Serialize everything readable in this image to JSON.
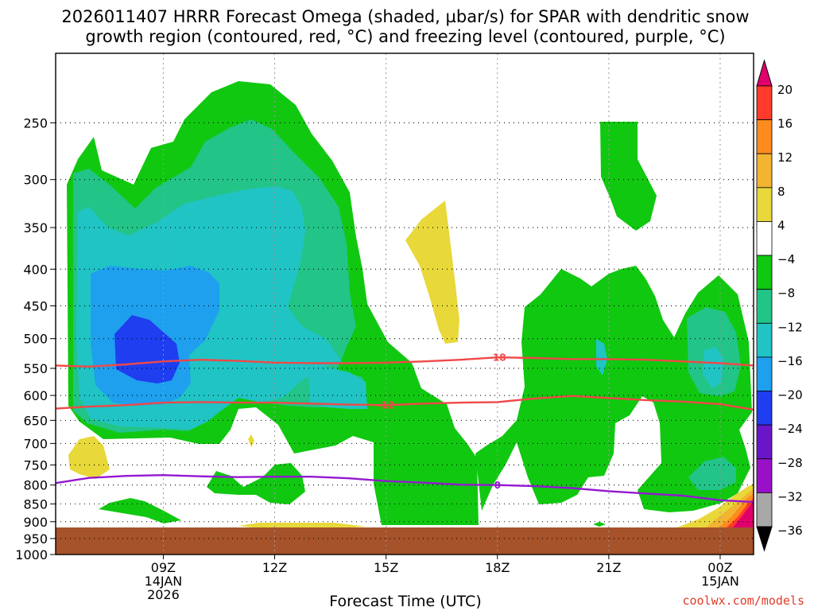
{
  "chart_data": {
    "type": "heatmap",
    "title_lines": [
      "2026011407 HRRR Forecast Omega (shaded, µbar/s) for SPAR with dendritic snow",
      "growth region (contoured, red, °C) and freezing level (contoured, purple, °C)"
    ],
    "xlabel": "Forecast Time (UTC)",
    "ylabel": "",
    "x_ticks": [
      {
        "hour": 9,
        "lines": [
          "09Z",
          "14JAN",
          "2026"
        ]
      },
      {
        "hour": 12,
        "lines": [
          "12Z"
        ]
      },
      {
        "hour": 15,
        "lines": [
          "15Z"
        ]
      },
      {
        "hour": 18,
        "lines": [
          "18Z"
        ]
      },
      {
        "hour": 21,
        "lines": [
          "21Z"
        ]
      },
      {
        "hour": 24,
        "lines": [
          "00Z",
          "15JAN"
        ]
      }
    ],
    "xlim": [
      6.1,
      24.9
    ],
    "y_axis": "pressure (log)",
    "y_ticks": [
      250,
      300,
      350,
      400,
      450,
      500,
      550,
      600,
      650,
      700,
      750,
      800,
      850,
      900,
      950,
      1000
    ],
    "ylim": [
      200,
      1000
    ],
    "colorbar": {
      "labels": [
        "20",
        "16",
        "12",
        "8",
        "4",
        "−4",
        "−8",
        "−12",
        "−16",
        "−20",
        "−24",
        "−28",
        "−32",
        "−36"
      ],
      "colors": [
        "#e0006c",
        "#ff3a2a",
        "#ff8a1e",
        "#f2b431",
        "#e8d83a",
        "#ffffff",
        "#10c810",
        "#22c488",
        "#20c4c4",
        "#1ea0ee",
        "#1e3ef0",
        "#6a16c8",
        "#9a10c8",
        "#a8a8a8",
        "#000000"
      ]
    },
    "contours": [
      {
        "label": "-18",
        "color": "#f04848",
        "points": [
          [
            6.1,
            545
          ],
          [
            7,
            547
          ],
          [
            8,
            543
          ],
          [
            9,
            538
          ],
          [
            10,
            535
          ],
          [
            11,
            537
          ],
          [
            12,
            540
          ],
          [
            13,
            541
          ],
          [
            14,
            541
          ],
          [
            15,
            540
          ],
          [
            16,
            538
          ],
          [
            17,
            535
          ],
          [
            18,
            531
          ],
          [
            19,
            532
          ],
          [
            20,
            534
          ],
          [
            21,
            534
          ],
          [
            22,
            535
          ],
          [
            23,
            538
          ],
          [
            24,
            541
          ],
          [
            24.9,
            545
          ]
        ],
        "label_at": [
          18,
          531
        ]
      },
      {
        "label": "-12",
        "color": "#f04848",
        "points": [
          [
            6.1,
            626
          ],
          [
            7,
            622
          ],
          [
            8,
            619
          ],
          [
            9,
            614
          ],
          [
            10,
            613
          ],
          [
            11,
            614
          ],
          [
            12,
            614
          ],
          [
            13,
            616
          ],
          [
            14,
            618
          ],
          [
            15,
            619
          ],
          [
            16,
            616
          ],
          [
            17,
            614
          ],
          [
            18,
            613
          ],
          [
            19,
            606
          ],
          [
            20,
            601
          ],
          [
            21,
            605
          ],
          [
            22,
            609
          ],
          [
            23,
            612
          ],
          [
            24,
            617
          ],
          [
            24.9,
            628
          ]
        ],
        "label_at": [
          15,
          619
        ]
      },
      {
        "label": "0",
        "color": "#9418d0",
        "points": [
          [
            6.1,
            795
          ],
          [
            7,
            782
          ],
          [
            8,
            777
          ],
          [
            9,
            775
          ],
          [
            10,
            778
          ],
          [
            11,
            780
          ],
          [
            12,
            779
          ],
          [
            13,
            779
          ],
          [
            14,
            783
          ],
          [
            15,
            790
          ],
          [
            16,
            794
          ],
          [
            17,
            799
          ],
          [
            18,
            800
          ],
          [
            19,
            803
          ],
          [
            20,
            808
          ],
          [
            21,
            816
          ],
          [
            22,
            822
          ],
          [
            23,
            828
          ],
          [
            24,
            840
          ],
          [
            24.9,
            845
          ]
        ],
        "label_at": [
          18,
          800
        ]
      }
    ],
    "grid": true,
    "legend": "colorbar-right"
  },
  "credit": "coolwx.com/models"
}
